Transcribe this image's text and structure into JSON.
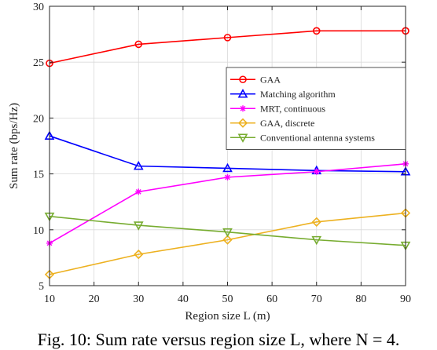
{
  "chart_data": {
    "type": "line",
    "title": "",
    "xlabel": "Region size L (m)",
    "ylabel": "Sum rate (bps/Hz)",
    "xlim": [
      10,
      90
    ],
    "ylim": [
      5,
      30
    ],
    "xticks": [
      10,
      20,
      30,
      40,
      50,
      60,
      70,
      80,
      90
    ],
    "yticks": [
      5,
      10,
      15,
      20,
      25,
      30
    ],
    "grid": true,
    "legend_position": "upper-right",
    "x": [
      10,
      30,
      50,
      70,
      90
    ],
    "series": [
      {
        "name": "GAA",
        "values": [
          24.9,
          26.6,
          27.2,
          27.8,
          27.8
        ],
        "color": "#ff0000",
        "marker": "circle"
      },
      {
        "name": "Matching algorithm",
        "values": [
          18.4,
          15.7,
          15.5,
          15.3,
          15.2
        ],
        "color": "#0000ff",
        "marker": "triangle-up"
      },
      {
        "name": "MRT, continuous",
        "values": [
          8.8,
          13.4,
          14.7,
          15.2,
          15.9
        ],
        "color": "#ff00ff",
        "marker": "asterisk"
      },
      {
        "name": "GAA, discrete",
        "values": [
          6.0,
          7.8,
          9.1,
          10.7,
          11.5
        ],
        "color": "#edb120",
        "marker": "diamond"
      },
      {
        "name": "Conventional antenna systems",
        "values": [
          11.2,
          10.4,
          9.8,
          9.1,
          8.6
        ],
        "color": "#77ac30",
        "marker": "triangle-down"
      }
    ]
  },
  "caption": "Fig. 10: Sum rate versus region size L, where N = 4."
}
